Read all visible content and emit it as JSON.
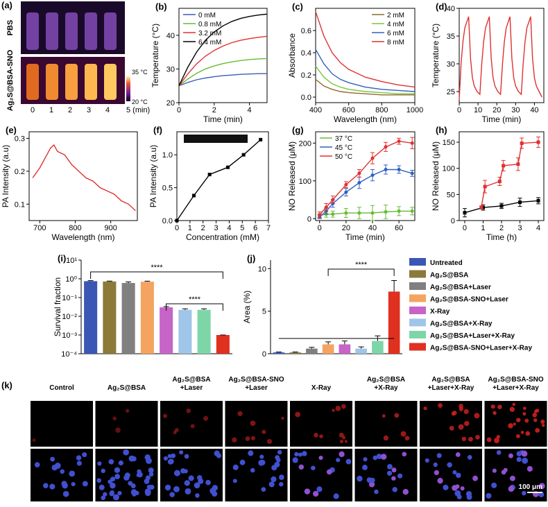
{
  "chart_data": [
    {
      "type": "line",
      "panel": "(b)",
      "xlabel": "Time (min)",
      "ylabel": "Temperature (°C)",
      "xlim": [
        0,
        5
      ],
      "ylim": [
        20,
        48
      ],
      "xticks": [
        0,
        2,
        4
      ],
      "yticks": [
        20,
        30,
        40
      ],
      "legend": "upper left",
      "series": [
        {
          "name": "0 mM",
          "color": "#3b5cb8",
          "x": [
            0,
            0.5,
            1,
            1.5,
            2,
            2.5,
            3,
            3.5,
            4,
            4.5,
            5
          ],
          "values": [
            25,
            26,
            26.8,
            27.3,
            27.7,
            28,
            28.2,
            28.4,
            28.5,
            28.6,
            28.6
          ]
        },
        {
          "name": "0.8 mM",
          "color": "#66bb33",
          "x": [
            0,
            0.5,
            1,
            1.5,
            2,
            2.5,
            3,
            3.5,
            4,
            4.5,
            5
          ],
          "values": [
            25,
            27,
            28.7,
            30,
            30.9,
            31.6,
            32.1,
            32.5,
            32.8,
            33,
            33.1
          ]
        },
        {
          "name": "3.2 mM",
          "color": "#e03030",
          "x": [
            0,
            0.5,
            1,
            1.5,
            2,
            2.5,
            3,
            3.5,
            4,
            4.5,
            5
          ],
          "values": [
            25,
            28.5,
            31.5,
            33.8,
            35.5,
            36.8,
            37.8,
            38.5,
            39,
            39.4,
            39.7
          ]
        },
        {
          "name": "6.4 mM",
          "color": "#000000",
          "x": [
            0,
            0.5,
            1,
            1.5,
            2,
            2.5,
            3,
            3.5,
            4,
            4.5,
            5
          ],
          "values": [
            25,
            30.5,
            35,
            38.5,
            41,
            42.8,
            44.1,
            45,
            45.6,
            46,
            46.3
          ]
        }
      ]
    },
    {
      "type": "line",
      "panel": "(c)",
      "xlabel": "Wavelength (nm)",
      "ylabel": "Absorbance",
      "xlim": [
        400,
        1000
      ],
      "ylim": [
        -0.05,
        0.8
      ],
      "xticks": [
        400,
        600,
        800,
        1000
      ],
      "yticks": [
        {
          "value": 0,
          "label": "0.0"
        },
        0.2,
        0.4,
        0.6
      ],
      "legend": "upper right",
      "series": [
        {
          "name": "2 mM",
          "color": "#8b6d2a",
          "x": [
            400,
            450,
            500,
            550,
            600,
            700,
            800,
            900,
            1000
          ],
          "values": [
            0.16,
            0.1,
            0.07,
            0.05,
            0.04,
            0.03,
            0.02,
            0.02,
            0.02
          ]
        },
        {
          "name": "4 mM",
          "color": "#7cc540",
          "x": [
            400,
            450,
            500,
            550,
            600,
            700,
            800,
            900,
            1000
          ],
          "values": [
            0.28,
            0.18,
            0.12,
            0.09,
            0.07,
            0.05,
            0.04,
            0.03,
            0.03
          ]
        },
        {
          "name": "6 mM",
          "color": "#3060c0",
          "x": [
            400,
            450,
            500,
            550,
            600,
            700,
            800,
            900,
            1000
          ],
          "values": [
            0.43,
            0.3,
            0.21,
            0.16,
            0.13,
            0.09,
            0.07,
            0.06,
            0.05
          ]
        },
        {
          "name": "8 mM",
          "color": "#e03030",
          "x": [
            400,
            450,
            500,
            550,
            600,
            700,
            800,
            900,
            1000
          ],
          "values": [
            0.77,
            0.55,
            0.4,
            0.31,
            0.25,
            0.18,
            0.14,
            0.11,
            0.09
          ]
        }
      ]
    },
    {
      "type": "line",
      "panel": "(d)",
      "xlabel": "Time (min)",
      "ylabel": "Temperature (°C)",
      "xlim": [
        0,
        45
      ],
      "ylim": [
        23,
        40
      ],
      "xticks": [
        0,
        10,
        20,
        30,
        40
      ],
      "yticks": [
        25,
        30,
        35,
        40
      ],
      "series": [
        {
          "color": "#e03030",
          "x": [
            0,
            1,
            2,
            3,
            5,
            6,
            7,
            8,
            9.5,
            11,
            12,
            13,
            14,
            16,
            17,
            18,
            19,
            20.5,
            22,
            23,
            24,
            25,
            27,
            28,
            29,
            30,
            31.5,
            33,
            34,
            35,
            36,
            38,
            39,
            40,
            41,
            42.5,
            44
          ],
          "values": [
            23.5,
            30,
            34,
            36.5,
            38.5,
            31,
            27.5,
            26,
            25,
            24.5,
            30,
            34,
            36.5,
            38.5,
            31,
            27.5,
            26,
            25,
            24.5,
            30,
            34,
            36.5,
            38.5,
            31,
            27.5,
            26,
            25,
            24.5,
            30,
            34,
            36.5,
            38.5,
            31,
            27.5,
            26,
            25,
            24
          ]
        }
      ]
    },
    {
      "type": "line",
      "panel": "(e)",
      "xlabel": "Wavelength (nm)",
      "ylabel": "PA Intensity (a.u)",
      "xlim": [
        670,
        975
      ],
      "ylim": [
        0.05,
        0.32
      ],
      "xticks": [
        700,
        800,
        900
      ],
      "yticks": [
        0.1,
        0.2,
        0.3
      ],
      "series": [
        {
          "color": "#e03030",
          "x": [
            680,
            700,
            720,
            730,
            740,
            750,
            770,
            790,
            810,
            830,
            850,
            870,
            890,
            910,
            930,
            950,
            970
          ],
          "values": [
            0.18,
            0.21,
            0.25,
            0.27,
            0.28,
            0.26,
            0.25,
            0.22,
            0.2,
            0.18,
            0.17,
            0.15,
            0.14,
            0.13,
            0.11,
            0.1,
            0.08
          ]
        }
      ]
    },
    {
      "type": "line",
      "panel": "(f)",
      "xlabel": "Concentration (mM)",
      "ylabel": "PA Intensity (a.u)",
      "xlim": [
        0,
        7
      ],
      "ylim": [
        0,
        1.35
      ],
      "xticks": [
        0,
        1,
        2,
        3,
        4,
        5,
        6,
        7
      ],
      "yticks": [
        {
          "value": 0,
          "label": "0.0"
        },
        0.5,
        {
          "value": 1,
          "label": "1.0"
        }
      ],
      "series": [
        {
          "color": "#000000",
          "marker": "square",
          "x": [
            0,
            1.3,
            2.5,
            3.9,
            5.1,
            6.4
          ],
          "values": [
            0,
            0.38,
            0.7,
            0.81,
            1,
            1.23
          ]
        }
      ]
    },
    {
      "type": "line",
      "panel": "(g)",
      "xlabel": "Time (min)",
      "ylabel": "NO Released (μM)",
      "xlim": [
        -3,
        72
      ],
      "ylim": [
        -5,
        230
      ],
      "xticks": [
        0,
        20,
        40,
        60
      ],
      "yticks": [
        0,
        100,
        200
      ],
      "legend": "upper left",
      "series": [
        {
          "name": "37 °C",
          "color": "#66bb33",
          "marker": "circle",
          "x": [
            0,
            5,
            10,
            20,
            30,
            40,
            50,
            60,
            70
          ],
          "values": [
            8,
            12,
            12,
            15,
            15,
            15,
            18,
            20,
            20
          ],
          "errors": [
            5,
            8,
            8,
            12,
            15,
            20,
            18,
            12,
            10
          ]
        },
        {
          "name": "45 °C",
          "color": "#3060c0",
          "marker": "circle",
          "x": [
            0,
            5,
            10,
            20,
            30,
            40,
            50,
            60,
            70
          ],
          "values": [
            5,
            20,
            40,
            70,
            95,
            115,
            130,
            130,
            120
          ],
          "errors": [
            5,
            8,
            10,
            10,
            15,
            15,
            12,
            10,
            8
          ]
        },
        {
          "name": "50 °C",
          "color": "#e03030",
          "marker": "circle",
          "x": [
            0,
            5,
            10,
            20,
            30,
            40,
            50,
            60,
            70
          ],
          "values": [
            10,
            30,
            50,
            90,
            120,
            160,
            190,
            205,
            200
          ],
          "errors": [
            8,
            10,
            10,
            8,
            10,
            15,
            12,
            8,
            15
          ]
        }
      ]
    },
    {
      "type": "line",
      "panel": "(h)",
      "xlabel": "Time (h)",
      "ylabel": "NO Released (μM)",
      "xlim": [
        -0.3,
        4.3
      ],
      "ylim": [
        0,
        170
      ],
      "xticks": [
        0,
        1,
        2,
        3,
        4
      ],
      "yticks": [
        0,
        50,
        100,
        150
      ],
      "series": [
        {
          "color": "#000000",
          "marker": "square",
          "x": [
            0,
            1,
            2,
            3,
            4
          ],
          "values": [
            15,
            25,
            28,
            35,
            38
          ],
          "errors": [
            8,
            5,
            5,
            8,
            6
          ]
        },
        {
          "color": "#e03030",
          "marker": "square",
          "x": [
            0.9,
            1.1,
            1.9,
            2.1,
            2.9,
            3.1,
            4
          ],
          "values": [
            25,
            65,
            75,
            105,
            108,
            148,
            150
          ],
          "errors": [
            3,
            12,
            8,
            10,
            12,
            10,
            10
          ]
        }
      ]
    },
    {
      "type": "bar",
      "panel": "(i)",
      "ylabel": "Survival fraction",
      "log_scale": true,
      "ylim": [
        0.0001,
        10
      ],
      "yticks": [
        {
          "value": 0.0001,
          "label": "10⁻⁴"
        },
        {
          "value": 0.001,
          "label": "10⁻³"
        },
        {
          "value": 0.01,
          "label": "10⁻²"
        },
        {
          "value": 0.1,
          "label": "10⁻¹"
        },
        {
          "value": 1,
          "label": "10⁰"
        },
        {
          "value": 10,
          "label": "10¹"
        }
      ],
      "categories": [
        "Untreated",
        "Ag₂S@BSA",
        "Ag₂S@BSA+Laser",
        "Ag₂S@BSA-SNO+Laser",
        "X-Ray",
        "Ag₂S@BSA+X-Ray",
        "Ag₂S@BSA+Laser+X-Ray",
        "Ag₂S@BSA-SNO+Laser+X-Ray"
      ],
      "colors": [
        "#3a57b5",
        "#8b7a3a",
        "#808080",
        "#f4a460",
        "#c764c7",
        "#9fc5e8",
        "#7ed6a8",
        "#e03020"
      ],
      "values": [
        0.75,
        0.72,
        0.6,
        0.7,
        0.03,
        0.022,
        0.022,
        0.001
      ],
      "errors": [
        0.05,
        0.04,
        0.08,
        0.05,
        0.003,
        0.003,
        0.003,
        0
      ],
      "annotations": [
        "****",
        "****"
      ]
    },
    {
      "type": "bar",
      "panel": "(j)",
      "ylabel": "Area (%)",
      "ylim": [
        0,
        11
      ],
      "yticks": [
        0,
        5,
        10
      ],
      "values": [
        0.15,
        0.15,
        0.6,
        1.1,
        1.1,
        0.6,
        1.5,
        7.3
      ],
      "errors": [
        0.05,
        0.05,
        0.15,
        0.3,
        0.4,
        0.2,
        0.6,
        1.3
      ],
      "annotations": [
        "****"
      ]
    }
  ],
  "thermal_image": {
    "panel": "(a)",
    "rows": [
      "PBS",
      "Ag₂S@BSA-SNO"
    ],
    "scale_max": "35 °C",
    "scale_min": "20 °C",
    "times": [
      "0",
      "1",
      "2",
      "3",
      "4",
      "5 (min)"
    ]
  },
  "micrographs": {
    "panel": "(k)",
    "columns": [
      "Control",
      "Ag₂S@BSA",
      "Ag₂S@BSA\n+Laser",
      "Ag₂S@BSA-SNO\n+Laser",
      "X-Ray",
      "Ag₂S@BSA\n+X-Ray",
      "Ag₂S@BSA\n+Laser+X-Ray",
      "Ag₂S@BSA-SNO\n+Laser+X-Ray"
    ],
    "scale_bar": "100 μm"
  }
}
